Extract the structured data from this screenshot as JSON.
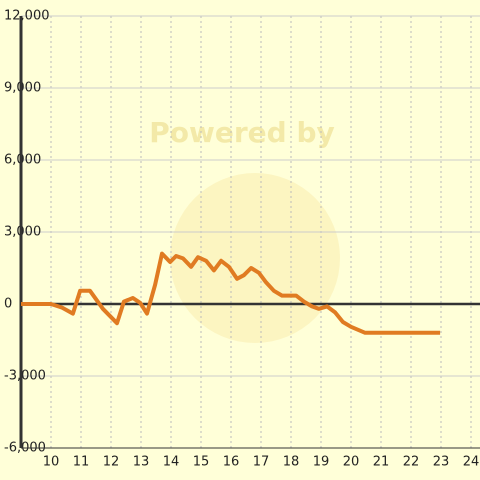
{
  "chart_data": {
    "type": "line",
    "watermark": "Powered by",
    "x": [
      9.0,
      10.0,
      10.37,
      10.73,
      10.97,
      11.3,
      11.73,
      12.2,
      12.43,
      12.73,
      12.97,
      13.2,
      13.47,
      13.7,
      13.97,
      14.17,
      14.4,
      14.67,
      14.9,
      15.17,
      15.43,
      15.67,
      15.93,
      16.2,
      16.43,
      16.67,
      16.93,
      17.17,
      17.43,
      17.7,
      18.17,
      18.43,
      18.7,
      18.93,
      19.2,
      19.47,
      19.73,
      20.0,
      20.47,
      22.97
    ],
    "series": [
      {
        "color": "#e07b22",
        "values": [
          0,
          0,
          -150,
          -400,
          550,
          550,
          -200,
          -800,
          100,
          250,
          50,
          -400,
          800,
          2100,
          1750,
          2000,
          1900,
          1550,
          1950,
          1800,
          1400,
          1800,
          1550,
          1050,
          1200,
          1500,
          1300,
          900,
          550,
          350,
          350,
          100,
          -100,
          -200,
          -100,
          -350,
          -750,
          -950,
          -1200,
          -1200
        ]
      }
    ],
    "xlim": [
      9,
      24.3
    ],
    "xticks": [
      10,
      11,
      12,
      13,
      14,
      15,
      16,
      17,
      18,
      19,
      20,
      21,
      22,
      23,
      24
    ],
    "ylim": [
      -6000,
      12000
    ],
    "yticks": [
      {
        "value": -6000,
        "label": "-6,000"
      },
      {
        "value": -3000,
        "label": "-3,000"
      },
      0,
      {
        "value": 3000,
        "label": "3,000"
      },
      {
        "value": 6000,
        "label": "6,000"
      },
      {
        "value": 9000,
        "label": "9,000"
      },
      {
        "value": 12000,
        "label": "12,000"
      }
    ],
    "grid": true
  }
}
